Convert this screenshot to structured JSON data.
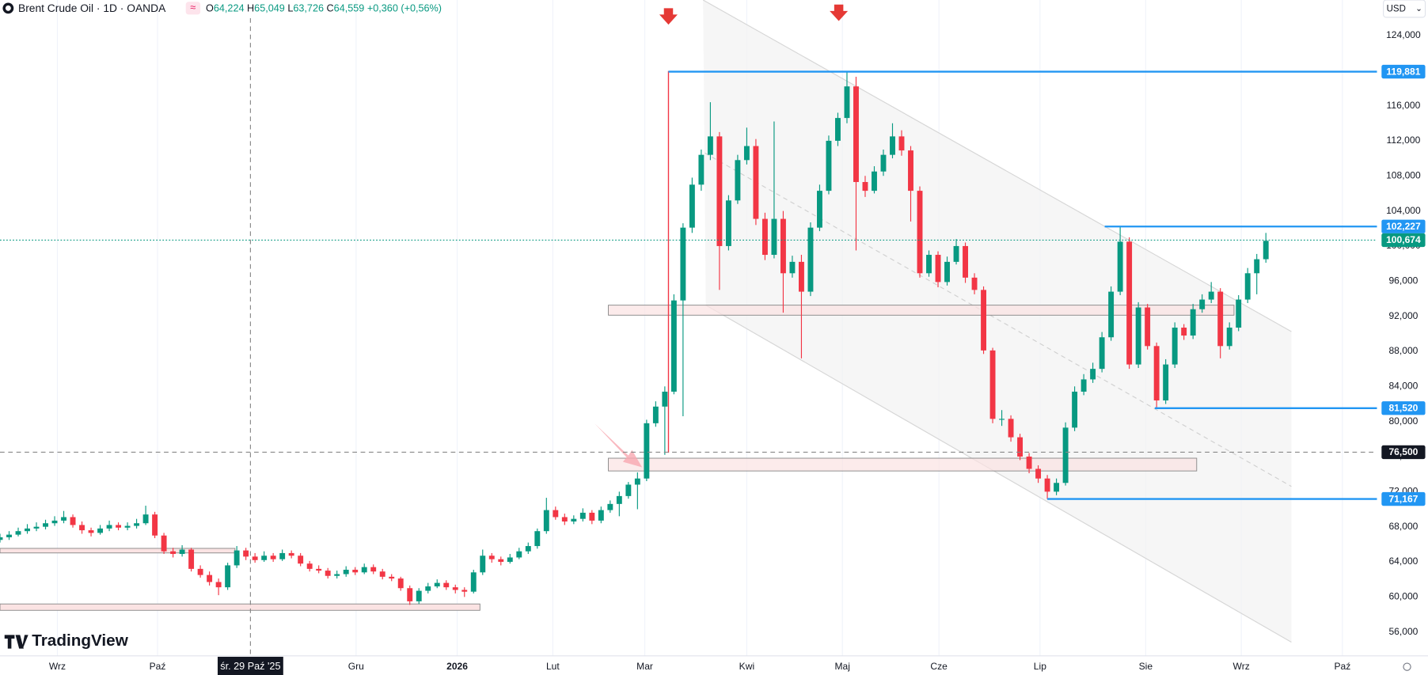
{
  "header": {
    "symbol": "Brent Crude Oil · 1D · OANDA",
    "ohlc": [
      {
        "key": "O",
        "value": "64,224"
      },
      {
        "key": "H",
        "value": "65,049"
      },
      {
        "key": "L",
        "value": "63,726"
      },
      {
        "key": "C",
        "value": "64,559"
      }
    ],
    "change": "+0,360 (+0,56%)"
  },
  "currency": "USD",
  "logo": "TradingView",
  "crosshair_label": "śr. 29 Paź '25",
  "chart_data": {
    "type": "candlestick",
    "up_color": "#089981",
    "down_color": "#f23645",
    "grid": true,
    "xlim": [
      0,
      151
    ],
    "ylim": [
      53800,
      128050
    ],
    "xticks": [
      {
        "value": 6.3,
        "label": "Wrz"
      },
      {
        "value": 17.3,
        "label": "Paź"
      },
      {
        "value": 39.1,
        "label": "Gru"
      },
      {
        "value": 50.2,
        "label": "2026"
      },
      {
        "value": 60.7,
        "label": "Lut"
      },
      {
        "value": 70.8,
        "label": "Mar"
      },
      {
        "value": 82,
        "label": "Kwi"
      },
      {
        "value": 92.5,
        "label": "Maj"
      },
      {
        "value": 103.1,
        "label": "Cze"
      },
      {
        "value": 114.2,
        "label": "Lip"
      },
      {
        "value": 125.8,
        "label": "Sie"
      },
      {
        "value": 136.3,
        "label": "Wrz"
      },
      {
        "value": 147.4,
        "label": "Paź"
      }
    ],
    "yticks": [
      {
        "value": 56000,
        "label": "56,000"
      },
      {
        "value": 60000,
        "label": "60,000"
      },
      {
        "value": 64000,
        "label": "64,000"
      },
      {
        "value": 68000,
        "label": "68,000"
      },
      {
        "value": 72000,
        "label": "72,000"
      },
      {
        "value": 76000,
        "label": "76,000"
      },
      {
        "value": 80000,
        "label": "80,000"
      },
      {
        "value": 84000,
        "label": "84,000"
      },
      {
        "value": 88000,
        "label": "88,000"
      },
      {
        "value": 92000,
        "label": "92,000"
      },
      {
        "value": 96000,
        "label": "96,000"
      },
      {
        "value": 100000,
        "label": "100,000"
      },
      {
        "value": 104000,
        "label": "104,000"
      },
      {
        "value": 108000,
        "label": "108,000"
      },
      {
        "value": 112000,
        "label": "112,000"
      },
      {
        "value": 116000,
        "label": "116,000"
      },
      {
        "value": 120000,
        "label": "120,000"
      },
      {
        "value": 124000,
        "label": "124,000"
      }
    ],
    "levels": [
      {
        "value": 119881,
        "label": "119,881",
        "color": "#2196f3",
        "style": "solid",
        "x": 73.4
      },
      {
        "value": 102227,
        "label": "102,227",
        "color": "#2196f3",
        "style": "solid",
        "x": 121.3
      },
      {
        "value": 100674,
        "label": "100,674",
        "color": "#089981",
        "style": "dotted"
      },
      {
        "value": 81520,
        "label": "81,520",
        "color": "#2196f3",
        "style": "solid",
        "x": 126.8
      },
      {
        "value": 76500,
        "label": "76,500",
        "color": "#131722",
        "style": "dashed"
      },
      {
        "value": 71167,
        "label": "71,167",
        "color": "#2196f3",
        "style": "solid",
        "x": 115
      }
    ],
    "ohlc": [
      [
        66500,
        67200,
        66200,
        66800
      ],
      [
        66800,
        67500,
        66500,
        67100
      ],
      [
        67100,
        67900,
        66900,
        67500
      ],
      [
        67500,
        68300,
        67200,
        67800
      ],
      [
        67800,
        68500,
        67500,
        68000
      ],
      [
        68000,
        68800,
        67700,
        68400
      ],
      [
        68400,
        69200,
        68100,
        68700
      ],
      [
        68700,
        69800,
        68400,
        69100
      ],
      [
        69100,
        69400,
        67900,
        68200
      ],
      [
        68200,
        68600,
        67200,
        67600
      ],
      [
        67600,
        67900,
        66900,
        67300
      ],
      [
        67300,
        68200,
        67100,
        67800
      ],
      [
        67800,
        68700,
        67500,
        68200
      ],
      [
        68200,
        68500,
        67600,
        67900
      ],
      [
        67900,
        68500,
        67600,
        68100
      ],
      [
        68100,
        68900,
        67800,
        68400
      ],
      [
        68400,
        70400,
        68200,
        69400
      ],
      [
        69400,
        69700,
        66700,
        67000
      ],
      [
        67000,
        67300,
        64900,
        65200
      ],
      [
        65200,
        65600,
        64500,
        64900
      ],
      [
        64900,
        65900,
        64600,
        65400
      ],
      [
        65400,
        65600,
        62900,
        63200
      ],
      [
        63200,
        63600,
        62200,
        62500
      ],
      [
        62500,
        62900,
        61300,
        61700
      ],
      [
        61700,
        62100,
        60200,
        61100
      ],
      [
        61100,
        63900,
        60800,
        63600
      ],
      [
        63600,
        65800,
        63300,
        65300
      ],
      [
        65300,
        65600,
        64200,
        64600
      ],
      [
        64600,
        65000,
        63900,
        64200
      ],
      [
        64200,
        65200,
        64000,
        64700
      ],
      [
        64700,
        65000,
        64000,
        64300
      ],
      [
        64300,
        65400,
        64100,
        65000
      ],
      [
        65000,
        65300,
        64400,
        64700
      ],
      [
        64700,
        65000,
        63500,
        63800
      ],
      [
        63800,
        64100,
        62900,
        63200
      ],
      [
        63200,
        63600,
        62700,
        63000
      ],
      [
        63000,
        63300,
        62100,
        62400
      ],
      [
        62400,
        63000,
        62100,
        62600
      ],
      [
        62600,
        63500,
        62300,
        63100
      ],
      [
        63100,
        63400,
        62500,
        62800
      ],
      [
        62800,
        63800,
        62600,
        63400
      ],
      [
        63400,
        63700,
        62600,
        62900
      ],
      [
        62900,
        63200,
        62000,
        62300
      ],
      [
        62300,
        62600,
        61800,
        62100
      ],
      [
        62100,
        62300,
        60700,
        61000
      ],
      [
        61000,
        61300,
        59100,
        59500
      ],
      [
        59500,
        61000,
        59200,
        60700
      ],
      [
        60700,
        61600,
        60400,
        61200
      ],
      [
        61200,
        62000,
        61000,
        61600
      ],
      [
        61600,
        61900,
        60800,
        61100
      ],
      [
        61100,
        61400,
        60400,
        60800
      ],
      [
        60800,
        61100,
        60000,
        60600
      ],
      [
        60600,
        63100,
        60400,
        62800
      ],
      [
        62800,
        65400,
        62500,
        64700
      ],
      [
        64700,
        65000,
        63900,
        64300
      ],
      [
        64300,
        64600,
        63600,
        64000
      ],
      [
        64000,
        64900,
        63800,
        64500
      ],
      [
        64500,
        65600,
        64300,
        65200
      ],
      [
        65200,
        66200,
        64900,
        65800
      ],
      [
        65800,
        67800,
        65500,
        67500
      ],
      [
        67500,
        71300,
        67200,
        69900
      ],
      [
        69900,
        70300,
        68800,
        69100
      ],
      [
        69100,
        69500,
        68200,
        68600
      ],
      [
        68600,
        69300,
        68300,
        68900
      ],
      [
        68900,
        70100,
        68600,
        69600
      ],
      [
        69600,
        69900,
        68300,
        68700
      ],
      [
        68700,
        70300,
        68400,
        69900
      ],
      [
        69900,
        71000,
        69600,
        70600
      ],
      [
        70600,
        72000,
        69200,
        71500
      ],
      [
        71500,
        73100,
        71200,
        72800
      ],
      [
        72800,
        74200,
        70000,
        73500
      ],
      [
        73500,
        80200,
        73200,
        79800
      ],
      [
        79800,
        82300,
        79400,
        81700
      ],
      [
        81700,
        84000,
        76200,
        83400
      ],
      [
        83400,
        94500,
        83100,
        93800
      ],
      [
        93800,
        102600,
        80600,
        102100
      ],
      [
        102100,
        107800,
        101500,
        107000
      ],
      [
        107000,
        111000,
        106300,
        110400
      ],
      [
        110400,
        116400,
        109800,
        112500
      ],
      [
        112500,
        113000,
        95000,
        100000
      ],
      [
        100000,
        105800,
        99500,
        105200
      ],
      [
        105200,
        110400,
        104800,
        109800
      ],
      [
        109800,
        113500,
        109300,
        111400
      ],
      [
        111400,
        112200,
        102400,
        103100
      ],
      [
        103100,
        103800,
        98400,
        99000
      ],
      [
        99000,
        114200,
        98600,
        103100
      ],
      [
        103100,
        104000,
        92400,
        96900
      ],
      [
        96900,
        98900,
        96400,
        98200
      ],
      [
        98200,
        99000,
        87200,
        94800
      ],
      [
        94800,
        102700,
        94300,
        102100
      ],
      [
        102100,
        107000,
        101700,
        106300
      ],
      [
        106300,
        112600,
        105900,
        112000
      ],
      [
        112000,
        115200,
        111400,
        114600
      ],
      [
        114600,
        119900,
        114000,
        118200
      ],
      [
        118200,
        119300,
        99500,
        107300
      ],
      [
        107300,
        108000,
        105600,
        106300
      ],
      [
        106300,
        109100,
        106000,
        108500
      ],
      [
        108500,
        111000,
        108000,
        110400
      ],
      [
        110400,
        114000,
        110000,
        112500
      ],
      [
        112500,
        113200,
        110300,
        110900
      ],
      [
        110900,
        111400,
        102800,
        106300
      ],
      [
        106300,
        106800,
        96400,
        96900
      ],
      [
        96900,
        99500,
        96500,
        99000
      ],
      [
        99000,
        99400,
        95300,
        95900
      ],
      [
        95900,
        98800,
        95500,
        98200
      ],
      [
        98200,
        100800,
        97900,
        100000
      ],
      [
        100000,
        100400,
        95800,
        96400
      ],
      [
        96400,
        96900,
        94500,
        95000
      ],
      [
        95000,
        95400,
        87700,
        88100
      ],
      [
        88100,
        88400,
        79800,
        80300
      ],
      [
        80300,
        81300,
        79500,
        80300
      ],
      [
        80300,
        80700,
        77700,
        78200
      ],
      [
        78200,
        78600,
        75600,
        76000
      ],
      [
        76000,
        76400,
        74100,
        74600
      ],
      [
        74600,
        75000,
        73000,
        73500
      ],
      [
        73500,
        73900,
        71167,
        72000
      ],
      [
        72000,
        73500,
        71600,
        73000
      ],
      [
        73000,
        79900,
        72700,
        79300
      ],
      [
        79300,
        84000,
        78900,
        83400
      ],
      [
        83400,
        85400,
        83000,
        84800
      ],
      [
        84800,
        86700,
        84400,
        86000
      ],
      [
        86000,
        90200,
        85600,
        89600
      ],
      [
        89600,
        95400,
        89200,
        94800
      ],
      [
        94800,
        102227,
        94400,
        100500
      ],
      [
        100500,
        101000,
        86000,
        86500
      ],
      [
        86500,
        93600,
        86100,
        93000
      ],
      [
        93000,
        93400,
        88200,
        88600
      ],
      [
        88600,
        89000,
        81520,
        82400
      ],
      [
        82400,
        87100,
        82000,
        86500
      ],
      [
        86500,
        91300,
        86100,
        90700
      ],
      [
        90700,
        91100,
        89300,
        89800
      ],
      [
        89800,
        93400,
        89400,
        92800
      ],
      [
        92800,
        94500,
        92400,
        93900
      ],
      [
        93900,
        95900,
        93500,
        94800
      ],
      [
        94800,
        95200,
        87200,
        88600
      ],
      [
        88600,
        91300,
        88200,
        90700
      ],
      [
        90700,
        94400,
        90300,
        93900
      ],
      [
        93900,
        97500,
        93500,
        96900
      ],
      [
        96900,
        99100,
        94500,
        98500
      ],
      [
        98500,
        101500,
        98100,
        100600
      ]
    ]
  }
}
